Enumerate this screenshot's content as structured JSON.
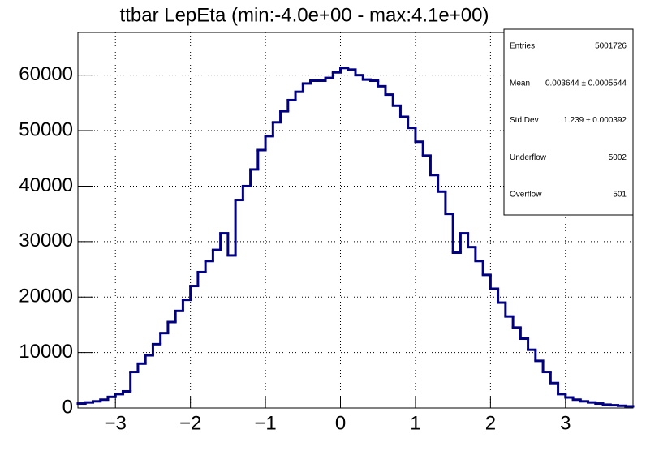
{
  "chart_data": {
    "type": "histogram",
    "title": "ttbar LepEta (min:-4.0e+00 - max:4.1e+00)",
    "color": "#000080",
    "bins": [
      -3.5,
      -3.4,
      -3.3,
      -3.2,
      -3.1,
      -3.0,
      -2.9,
      -2.8,
      -2.7,
      -2.6,
      -2.5,
      -2.4,
      -2.3,
      -2.2,
      -2.1,
      -2.0,
      -1.9,
      -1.8,
      -1.7,
      -1.6,
      -1.5,
      -1.4,
      -1.3,
      -1.2,
      -1.1,
      -1.0,
      -0.9,
      -0.8,
      -0.7,
      -0.6,
      -0.5,
      -0.4,
      -0.3,
      -0.2,
      -0.1,
      0.0,
      0.1,
      0.2,
      0.3,
      0.4,
      0.5,
      0.6,
      0.7,
      0.8,
      0.9,
      1.0,
      1.1,
      1.2,
      1.3,
      1.4,
      1.5,
      1.6,
      1.7,
      1.8,
      1.9,
      2.0,
      2.1,
      2.2,
      2.3,
      2.4,
      2.5,
      2.6,
      2.7,
      2.8,
      2.9,
      3.0,
      3.1,
      3.2,
      3.3,
      3.4,
      3.5,
      3.6,
      3.7,
      3.8,
      3.9
    ],
    "values": [
      800,
      1000,
      1200,
      1500,
      2000,
      2500,
      3000,
      6500,
      8000,
      9500,
      11500,
      13500,
      15500,
      17500,
      19500,
      22000,
      24500,
      26500,
      28500,
      31500,
      27500,
      37500,
      40000,
      43000,
      46500,
      49000,
      51500,
      53500,
      55500,
      57000,
      58500,
      59000,
      59000,
      59500,
      60500,
      61300,
      61000,
      60000,
      59200,
      59000,
      58000,
      56500,
      54500,
      52500,
      50500,
      48000,
      45500,
      42000,
      39000,
      35000,
      28000,
      31500,
      29000,
      26500,
      24000,
      21500,
      19000,
      16500,
      14500,
      12500,
      10500,
      8500,
      6500,
      4500,
      2500,
      1900,
      1500,
      1200,
      1000,
      800,
      600,
      500,
      400,
      300
    ],
    "xlim": [
      -3.5,
      3.9
    ],
    "ylim": [
      0,
      67700
    ],
    "xticks": [
      {
        "value": -3,
        "label": "−3"
      },
      {
        "value": -2,
        "label": "−2"
      },
      {
        "value": -1,
        "label": "−1"
      },
      0,
      1,
      2,
      3
    ],
    "yticks": [
      0,
      10000,
      20000,
      30000,
      40000,
      50000,
      60000
    ],
    "grid": true,
    "stats": [
      {
        "label": "Entries",
        "value": 5001726
      },
      {
        "label": "Mean",
        "value": "0.003644 ± 0.0005544"
      },
      {
        "label": "Std Dev",
        "value": "1.239 ± 0.000392"
      },
      {
        "label": "Underflow",
        "value": 5002
      },
      {
        "label": "Overflow",
        "value": 501
      }
    ]
  }
}
